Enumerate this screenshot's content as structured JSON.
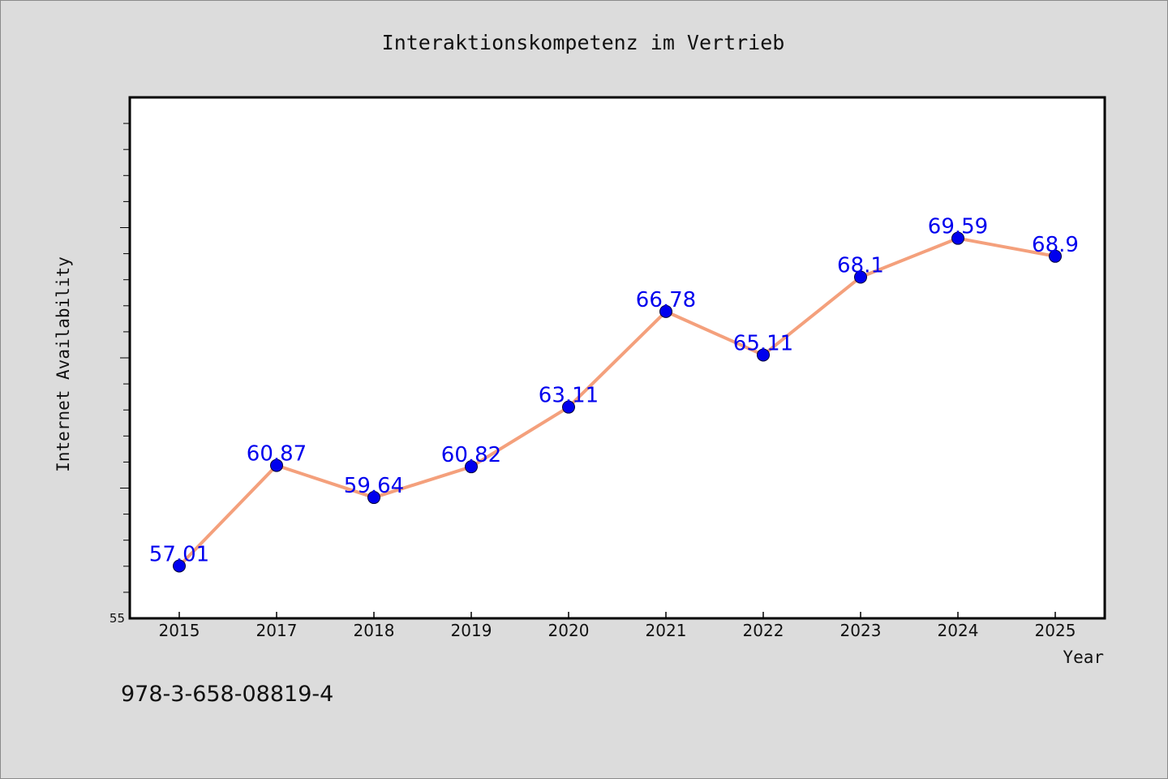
{
  "chart_data": {
    "type": "line",
    "title": "Interaktionskompetenz im Vertrieb",
    "xlabel": "Year",
    "ylabel": "Internet Availability",
    "categories": [
      "2015",
      "2017",
      "2018",
      "2019",
      "2020",
      "2021",
      "2022",
      "2023",
      "2024",
      "2025"
    ],
    "values": [
      57.01,
      60.87,
      59.64,
      60.82,
      63.11,
      66.78,
      65.11,
      68.1,
      69.59,
      68.9
    ],
    "data_labels": [
      "57.01",
      "60.87",
      "59.64",
      "60.82",
      "63.11",
      "66.78",
      "65.11",
      "68.1",
      "69.59",
      "68.9"
    ],
    "ylim": [
      55,
      75
    ],
    "ytick_labels": [
      "55"
    ],
    "grid": false,
    "legend": "none",
    "colors": {
      "line": "#f4a07c",
      "marker": "#0000ee",
      "marker_edge": "#00003a",
      "data_label": "#0000ee",
      "plot_background": "#ffffff",
      "page_background": "#dcdcdc"
    }
  },
  "footer": {
    "isbn": "978-3-658-08819-4"
  }
}
